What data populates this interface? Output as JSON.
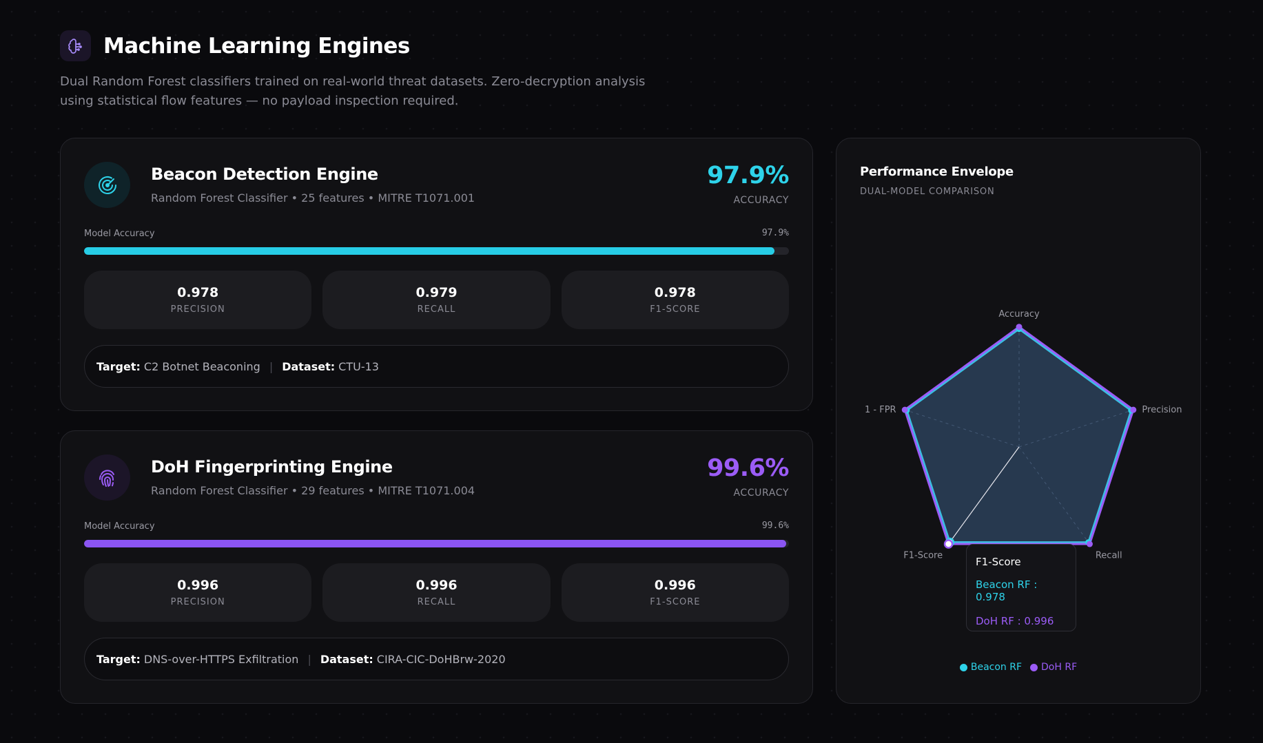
{
  "header": {
    "title": "Machine Learning Engines",
    "subtitle": "Dual Random Forest classifiers trained on real-world threat datasets. Zero-decryption analysis using statistical flow features — no payload inspection required.",
    "icon": "brain-icon"
  },
  "colors": {
    "beacon_accent": "#2ed3ea",
    "doh_accent": "#9b5cf6",
    "background": "#0a0a0d"
  },
  "engines": [
    {
      "name": "Beacon Detection Engine",
      "meta": "Random Forest Classifier • 25 features • MITRE T1071.001",
      "icon": "radar-icon",
      "accuracy": "97.9%",
      "accuracy_label": "ACCURACY",
      "bar_label": "Model Accuracy",
      "bar_value": "97.9%",
      "bar_fraction": 0.979,
      "metrics": [
        {
          "value": "0.978",
          "label": "PRECISION"
        },
        {
          "value": "0.979",
          "label": "RECALL"
        },
        {
          "value": "0.978",
          "label": "F1-SCORE"
        }
      ],
      "target_label": "Target:",
      "target": "C2 Botnet Beaconing",
      "dataset_label": "Dataset:",
      "dataset": "CTU-13"
    },
    {
      "name": "DoH Fingerprinting Engine",
      "meta": "Random Forest Classifier • 29 features • MITRE T1071.004",
      "icon": "fingerprint-icon",
      "accuracy": "99.6%",
      "accuracy_label": "ACCURACY",
      "bar_label": "Model Accuracy",
      "bar_value": "99.6%",
      "bar_fraction": 0.996,
      "metrics": [
        {
          "value": "0.996",
          "label": "PRECISION"
        },
        {
          "value": "0.996",
          "label": "RECALL"
        },
        {
          "value": "0.996",
          "label": "F1-SCORE"
        }
      ],
      "target_label": "Target:",
      "target": "DNS-over-HTTPS Exfiltration",
      "dataset_label": "Dataset:",
      "dataset": "CIRA-CIC-DoHBrw-2020"
    }
  ],
  "radar": {
    "title": "Performance Envelope",
    "subtitle": "DUAL-MODEL COMPARISON",
    "tooltip": {
      "title": "F1-Score",
      "beacon_line": "Beacon RF : 0.978",
      "doh_line": "DoH RF : 0.996"
    },
    "legend": [
      "Beacon RF",
      "DoH RF"
    ]
  },
  "chart_data": {
    "type": "radar",
    "title": "Performance Envelope",
    "axes": [
      "Accuracy",
      "Precision",
      "Recall",
      "F1-Score",
      "1 - FPR"
    ],
    "series": [
      {
        "name": "Beacon RF",
        "values": [
          0.979,
          0.978,
          0.979,
          0.978,
          0.98
        ],
        "color": "#2ed3ea"
      },
      {
        "name": "DoH RF",
        "values": [
          0.996,
          0.996,
          0.996,
          0.996,
          0.996
        ],
        "color": "#9b5cf6"
      }
    ],
    "range": [
      0,
      1
    ],
    "legend_position": "bottom",
    "highlighted_axis": "F1-Score"
  }
}
